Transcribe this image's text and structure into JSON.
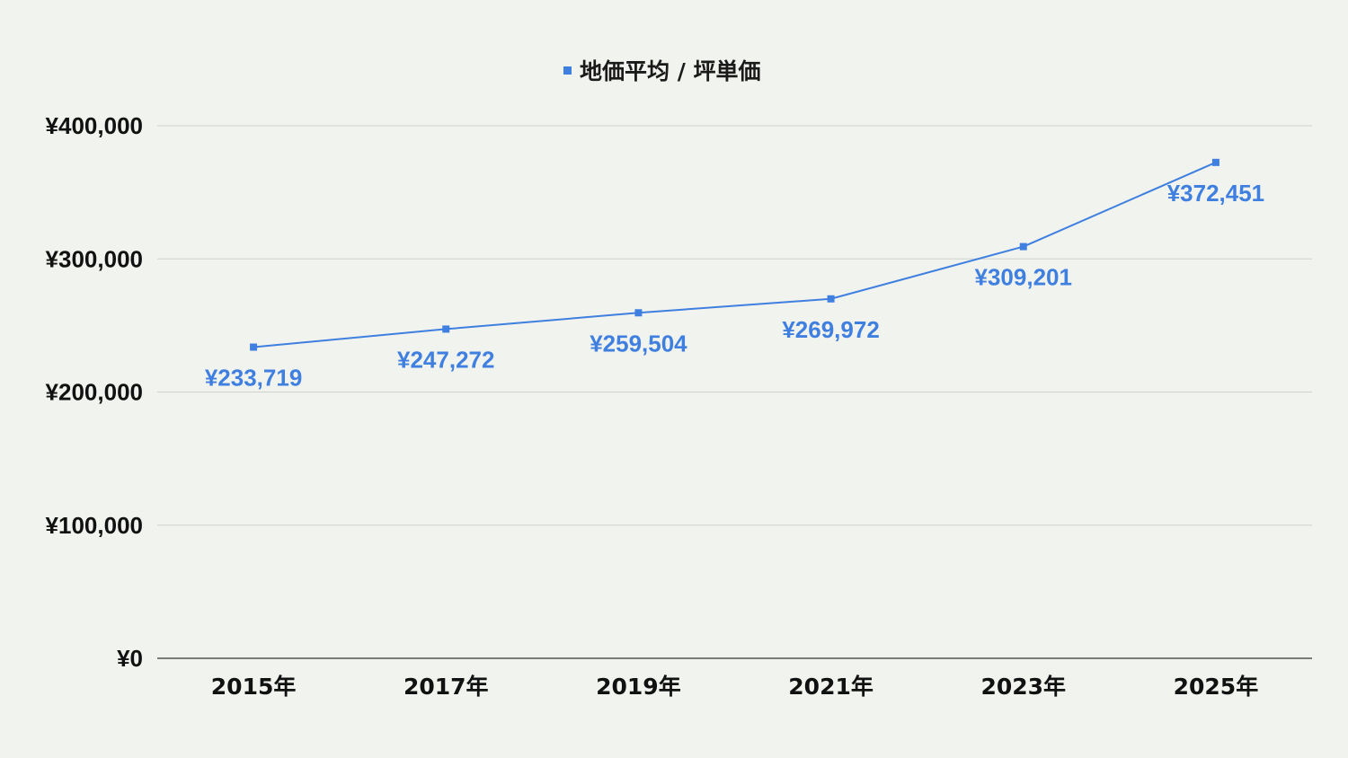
{
  "chart_data": {
    "type": "line",
    "title": "",
    "xlabel": "",
    "ylabel": "",
    "categories": [
      "2015年",
      "2017年",
      "2019年",
      "2021年",
      "2023年",
      "2025年"
    ],
    "series": [
      {
        "name": "地価平均 / 坪単価",
        "values": [
          233719,
          247272,
          259504,
          269972,
          309201,
          372451
        ],
        "labels": [
          "¥233,719",
          "¥247,272",
          "¥259,504",
          "¥269,972",
          "¥309,201",
          "¥372,451"
        ]
      }
    ],
    "ylim": [
      0,
      400000
    ],
    "y_ticks": [
      0,
      100000,
      200000,
      300000,
      400000
    ],
    "y_tick_labels": [
      "¥0",
      "¥100,000",
      "¥200,000",
      "¥300,000",
      "¥400,000"
    ],
    "grid": true,
    "legend_position": "top-center",
    "colors": {
      "series": "#3f7fe0",
      "grid": "#cfd2cc",
      "axis": "#333333",
      "background": "#f1f3ee"
    }
  }
}
